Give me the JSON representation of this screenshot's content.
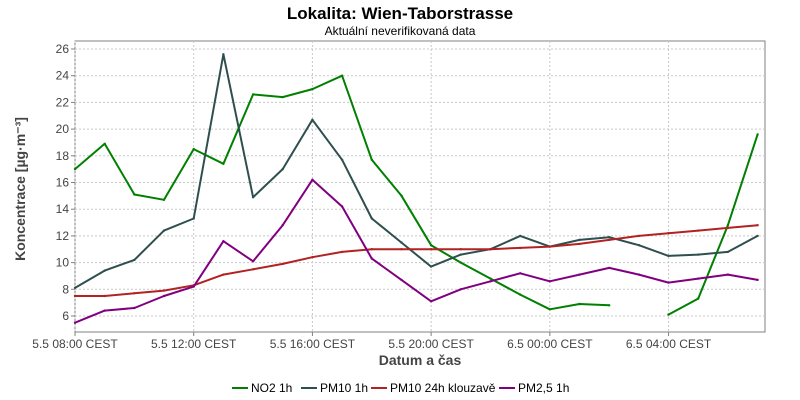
{
  "chart_data": {
    "type": "line",
    "title": "Lokalita: Wien-Taborstrasse",
    "subtitle": "Aktuální neverifikovaná data",
    "xlabel": "Datum a čas",
    "ylabel": "Koncentrace [µg·m⁻³]",
    "ylim": [
      4.8,
      26.6
    ],
    "xlim": [
      0,
      23.25
    ],
    "yticks": [
      6,
      8,
      10,
      12,
      14,
      16,
      18,
      20,
      22,
      24,
      26
    ],
    "xticks": [
      {
        "x": 0,
        "label": "5.5 08:00 CEST"
      },
      {
        "x": 4,
        "label": "5.5 12:00 CEST"
      },
      {
        "x": 8,
        "label": "5.5 16:00 CEST"
      },
      {
        "x": 12,
        "label": "5.5 20:00 CEST"
      },
      {
        "x": 16,
        "label": "6.5 00:00 CEST"
      },
      {
        "x": 20,
        "label": "6.5 04:00 CEST"
      }
    ],
    "grid": true,
    "legend_position": "bottom",
    "series": [
      {
        "name": "NO2 1h",
        "color": "#008000",
        "points": [
          [
            0,
            17.0
          ],
          [
            1,
            18.9
          ],
          [
            2,
            15.1
          ],
          [
            3,
            14.7
          ],
          [
            4,
            18.5
          ],
          [
            5,
            17.4
          ],
          [
            6,
            22.6
          ],
          [
            7,
            22.4
          ],
          [
            8,
            23.0
          ],
          [
            9,
            24.0
          ],
          [
            10,
            17.7
          ],
          [
            11,
            15.0
          ],
          [
            12,
            11.3
          ],
          [
            13,
            10.0
          ],
          [
            14,
            8.8
          ],
          [
            15,
            7.6
          ],
          [
            16,
            6.5
          ],
          [
            17,
            6.9
          ],
          [
            18,
            6.8
          ],
          [
            20,
            6.1
          ],
          [
            21,
            7.3
          ],
          [
            22,
            12.8
          ],
          [
            23,
            19.6
          ]
        ]
      },
      {
        "name": "PM10 1h",
        "color": "#2f4f4f",
        "points": [
          [
            0,
            8.1
          ],
          [
            1,
            9.4
          ],
          [
            2,
            10.2
          ],
          [
            3,
            12.4
          ],
          [
            4,
            13.3
          ],
          [
            5,
            25.6
          ],
          [
            6,
            14.9
          ],
          [
            7,
            17.0
          ],
          [
            8,
            20.7
          ],
          [
            9,
            17.7
          ],
          [
            10,
            13.3
          ],
          [
            11,
            11.5
          ],
          [
            12,
            9.7
          ],
          [
            13,
            10.6
          ],
          [
            14,
            11.0
          ],
          [
            15,
            12.0
          ],
          [
            16,
            11.2
          ],
          [
            17,
            11.7
          ],
          [
            18,
            11.9
          ],
          [
            19,
            11.3
          ],
          [
            20,
            10.5
          ],
          [
            21,
            10.6
          ],
          [
            22,
            10.8
          ],
          [
            23,
            12.0
          ]
        ]
      },
      {
        "name": "PM10 24h klouzavě",
        "color": "#b22222",
        "points": [
          [
            0,
            7.5
          ],
          [
            1,
            7.5
          ],
          [
            2,
            7.7
          ],
          [
            3,
            7.9
          ],
          [
            4,
            8.3
          ],
          [
            5,
            9.1
          ],
          [
            6,
            9.5
          ],
          [
            7,
            9.9
          ],
          [
            8,
            10.4
          ],
          [
            9,
            10.8
          ],
          [
            10,
            11.0
          ],
          [
            11,
            11.0
          ],
          [
            12,
            11.0
          ],
          [
            13,
            11.0
          ],
          [
            14,
            11.0
          ],
          [
            15,
            11.1
          ],
          [
            16,
            11.2
          ],
          [
            17,
            11.4
          ],
          [
            18,
            11.7
          ],
          [
            19,
            12.0
          ],
          [
            20,
            12.2
          ],
          [
            21,
            12.4
          ],
          [
            22,
            12.6
          ],
          [
            23,
            12.8
          ]
        ]
      },
      {
        "name": "PM2,5 1h",
        "color": "#800080",
        "points": [
          [
            0,
            5.5
          ],
          [
            1,
            6.4
          ],
          [
            2,
            6.6
          ],
          [
            3,
            7.5
          ],
          [
            4,
            8.2
          ],
          [
            5,
            11.6
          ],
          [
            6,
            10.1
          ],
          [
            7,
            12.8
          ],
          [
            8,
            16.2
          ],
          [
            9,
            14.2
          ],
          [
            10,
            10.3
          ],
          [
            11,
            8.7
          ],
          [
            12,
            7.1
          ],
          [
            13,
            8.0
          ],
          [
            14,
            8.6
          ],
          [
            15,
            9.2
          ],
          [
            16,
            8.6
          ],
          [
            17,
            9.1
          ],
          [
            18,
            9.6
          ],
          [
            19,
            9.1
          ],
          [
            20,
            8.5
          ],
          [
            21,
            8.8
          ],
          [
            22,
            9.1
          ],
          [
            23,
            8.7
          ]
        ]
      }
    ]
  }
}
